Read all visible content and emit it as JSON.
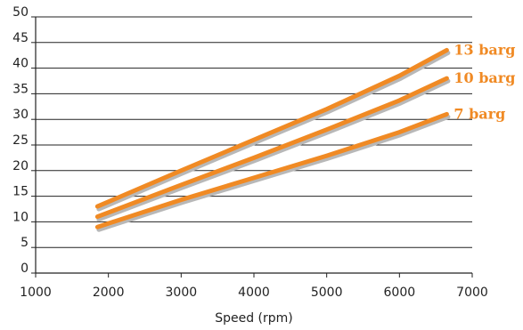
{
  "chart_data": {
    "type": "line",
    "title": "",
    "xlabel": "Speed (rpm)",
    "ylabel": "",
    "xlim": [
      1000,
      7000
    ],
    "ylim": [
      0,
      50
    ],
    "x_ticks": [
      1000,
      2000,
      3000,
      4000,
      5000,
      6000,
      7000
    ],
    "y_ticks": [
      0,
      5,
      10,
      15,
      20,
      25,
      30,
      35,
      40,
      45,
      50
    ],
    "grid": "horizontal",
    "line_color": "#f08a24",
    "shadow_color": "#b8b8b8",
    "label_color": "#f08a24",
    "series": [
      {
        "name": "13 barg",
        "x": [
          1850,
          3000,
          4000,
          5000,
          6000,
          6650
        ],
        "y": [
          13,
          20,
          26,
          32,
          38.5,
          43.5
        ]
      },
      {
        "name": "10 barg",
        "x": [
          1850,
          3000,
          4000,
          5000,
          6000,
          6650
        ],
        "y": [
          11,
          17.2,
          22.5,
          28,
          33.7,
          38
        ]
      },
      {
        "name": "7 barg",
        "x": [
          1850,
          3000,
          4000,
          5000,
          6000,
          6650
        ],
        "y": [
          9,
          14.3,
          18.6,
          22.9,
          27.5,
          31
        ]
      }
    ]
  }
}
